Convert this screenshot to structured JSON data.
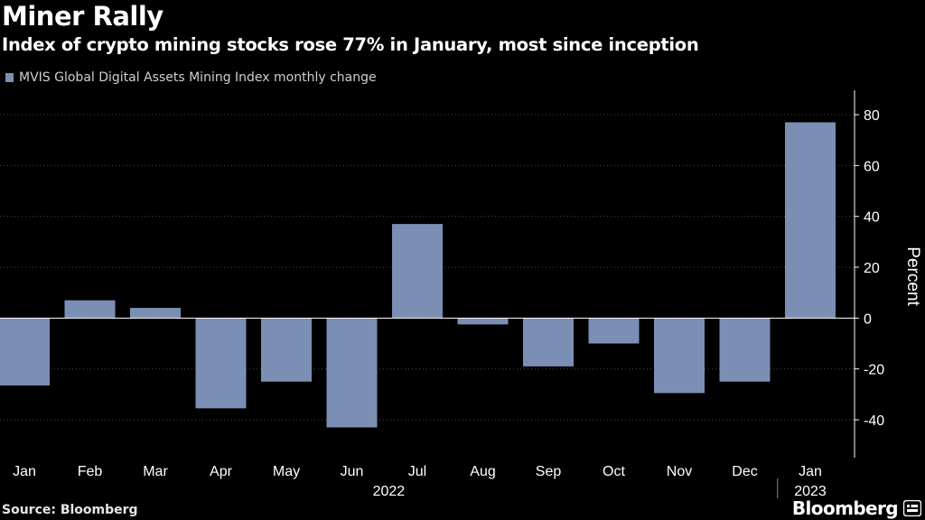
{
  "title": "Miner Rally",
  "subtitle": "Index of crypto mining stocks rose 77% in January, most since inception",
  "source": "Source: Bloomberg",
  "brand": "Bloomberg",
  "colors": {
    "bar": "#7a8fb3",
    "background": "#000000",
    "grid": "#4a4a4a",
    "text": "#ffffff"
  },
  "chart_data": {
    "type": "bar",
    "title": "Miner Rally",
    "legend": [
      "MVIS Global Digital Assets Mining Index monthly change"
    ],
    "legend_position": "top-left",
    "categories": [
      "Jan",
      "Feb",
      "Mar",
      "Apr",
      "May",
      "Jun",
      "Jul",
      "Aug",
      "Sep",
      "Oct",
      "Nov",
      "Dec",
      "Jan"
    ],
    "series": [
      {
        "name": "MVIS Global Digital Assets Mining Index monthly change",
        "values": [
          -26.5,
          7,
          4,
          -35.5,
          -25,
          -43,
          37,
          -2.5,
          -19,
          -10,
          -29.5,
          -25,
          77
        ]
      }
    ],
    "year_groups": [
      {
        "label": "2022"
      },
      {
        "label": "2023"
      }
    ],
    "ylabel": "Percent",
    "xlabel": "",
    "ylim": [
      -50,
      90
    ],
    "yticks": [
      -40,
      -20,
      0,
      20,
      40,
      60,
      80
    ],
    "grid": true,
    "y_axis_side": "right"
  }
}
